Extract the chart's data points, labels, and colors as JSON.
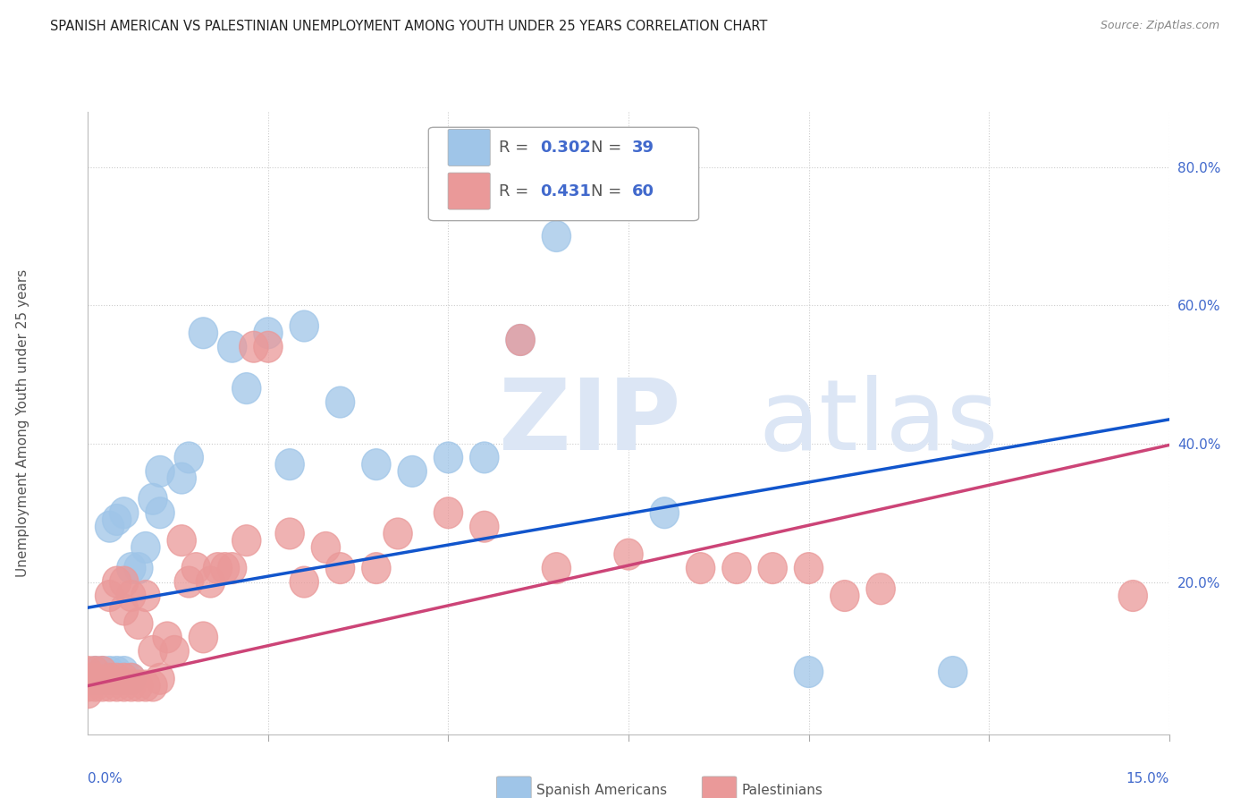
{
  "title": "SPANISH AMERICAN VS PALESTINIAN UNEMPLOYMENT AMONG YOUTH UNDER 25 YEARS CORRELATION CHART",
  "source": "Source: ZipAtlas.com",
  "ylabel": "Unemployment Among Youth under 25 years",
  "xlim": [
    0.0,
    0.15
  ],
  "ylim": [
    -0.02,
    0.88
  ],
  "yticks": [
    0.2,
    0.4,
    0.6,
    0.8
  ],
  "ytick_labels": [
    "20.0%",
    "40.0%",
    "60.0%",
    "80.0%"
  ],
  "xtick_left_label": "0.0%",
  "xtick_right_label": "15.0%",
  "legend_blue_r": "0.302",
  "legend_blue_n": "39",
  "legend_pink_r": "0.431",
  "legend_pink_n": "60",
  "blue_color": "#9fc5e8",
  "pink_color": "#ea9999",
  "blue_marker_edge": "#9fc5e8",
  "pink_marker_edge": "#ea9999",
  "blue_line_color": "#1155cc",
  "pink_line_color": "#cc4477",
  "legend_text_color": "#4169cc",
  "watermark_zip_color": "#dce6f5",
  "watermark_atlas_color": "#dce6f5",
  "blue_trend_x": [
    0.0,
    0.15
  ],
  "blue_trend_y": [
    0.163,
    0.435
  ],
  "pink_trend_x": [
    0.0,
    0.15
  ],
  "pink_trend_y": [
    0.05,
    0.398
  ],
  "blue_points_x": [
    0.0,
    0.001,
    0.001,
    0.002,
    0.002,
    0.003,
    0.003,
    0.003,
    0.004,
    0.004,
    0.004,
    0.005,
    0.005,
    0.005,
    0.006,
    0.006,
    0.007,
    0.008,
    0.009,
    0.01,
    0.01,
    0.013,
    0.014,
    0.016,
    0.02,
    0.022,
    0.025,
    0.028,
    0.03,
    0.035,
    0.04,
    0.045,
    0.05,
    0.055,
    0.06,
    0.065,
    0.08,
    0.1,
    0.12
  ],
  "blue_points_y": [
    0.06,
    0.06,
    0.07,
    0.06,
    0.07,
    0.06,
    0.07,
    0.28,
    0.06,
    0.07,
    0.29,
    0.06,
    0.07,
    0.3,
    0.06,
    0.22,
    0.22,
    0.25,
    0.32,
    0.3,
    0.36,
    0.35,
    0.38,
    0.56,
    0.54,
    0.48,
    0.56,
    0.37,
    0.57,
    0.46,
    0.37,
    0.36,
    0.38,
    0.38,
    0.55,
    0.7,
    0.3,
    0.07,
    0.07
  ],
  "pink_points_x": [
    0.0,
    0.0,
    0.0,
    0.0,
    0.001,
    0.001,
    0.001,
    0.002,
    0.002,
    0.003,
    0.003,
    0.003,
    0.004,
    0.004,
    0.004,
    0.005,
    0.005,
    0.005,
    0.005,
    0.006,
    0.006,
    0.006,
    0.007,
    0.007,
    0.008,
    0.008,
    0.009,
    0.009,
    0.01,
    0.011,
    0.012,
    0.013,
    0.014,
    0.015,
    0.016,
    0.017,
    0.018,
    0.019,
    0.02,
    0.022,
    0.023,
    0.025,
    0.028,
    0.03,
    0.033,
    0.035,
    0.04,
    0.043,
    0.05,
    0.055,
    0.06,
    0.065,
    0.075,
    0.085,
    0.09,
    0.095,
    0.1,
    0.105,
    0.11,
    0.145
  ],
  "pink_points_y": [
    0.04,
    0.05,
    0.06,
    0.07,
    0.05,
    0.06,
    0.07,
    0.05,
    0.07,
    0.05,
    0.06,
    0.18,
    0.05,
    0.06,
    0.2,
    0.05,
    0.06,
    0.16,
    0.2,
    0.05,
    0.06,
    0.18,
    0.05,
    0.14,
    0.05,
    0.18,
    0.05,
    0.1,
    0.06,
    0.12,
    0.1,
    0.26,
    0.2,
    0.22,
    0.12,
    0.2,
    0.22,
    0.22,
    0.22,
    0.26,
    0.54,
    0.54,
    0.27,
    0.2,
    0.25,
    0.22,
    0.22,
    0.27,
    0.3,
    0.28,
    0.55,
    0.22,
    0.24,
    0.22,
    0.22,
    0.22,
    0.22,
    0.18,
    0.19,
    0.18
  ]
}
